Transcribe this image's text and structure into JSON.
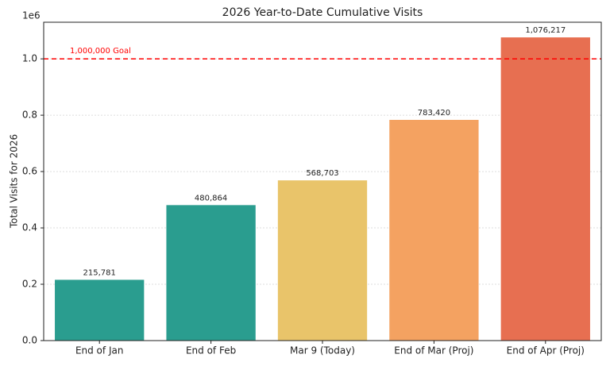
{
  "chart_data": {
    "type": "bar",
    "title": "2026 Year-to-Date Cumulative Visits",
    "y_label": "Total Visits for 2026",
    "y_offset_label": "1e6",
    "categories": [
      "End of Jan",
      "End of Feb",
      "Mar 9 (Today)",
      "End of Mar (Proj)",
      "End of Apr (Proj)"
    ],
    "values": [
      215781,
      480864,
      568703,
      783420,
      1076217
    ],
    "value_labels": [
      "215,781",
      "480,864",
      "568,703",
      "783,420",
      "1,076,217"
    ],
    "colors": [
      "#2a9d8f",
      "#2a9d8f",
      "#e9c46a",
      "#f4a261",
      "#e76f51"
    ],
    "ylim": [
      0,
      1130000
    ],
    "yticks": [
      {
        "value": 0,
        "label": "0.0"
      },
      {
        "value": 200000,
        "label": "0.2"
      },
      {
        "value": 400000,
        "label": "0.4"
      },
      {
        "value": 600000,
        "label": "0.6"
      },
      {
        "value": 800000,
        "label": "0.8"
      },
      {
        "value": 1000000,
        "label": "1.0"
      }
    ],
    "grid": true,
    "reference_line": {
      "value": 1000000,
      "label": "1,000,000 Goal",
      "color": "#ff0000"
    }
  }
}
